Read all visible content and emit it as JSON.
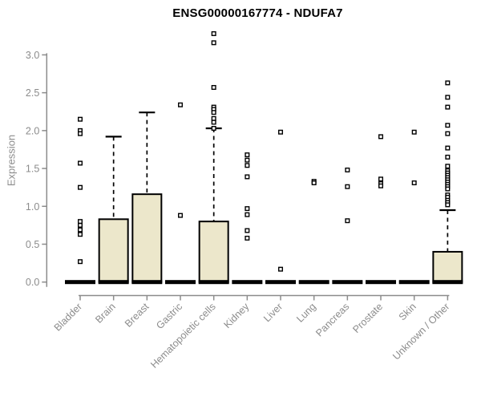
{
  "chart_data": {
    "type": "boxplot",
    "title": "ENSG00000167774 - NDUFA7",
    "ylabel": "Expression",
    "xlabel": "",
    "ylim": [
      0.0,
      3.3
    ],
    "yticks": [
      0.0,
      0.5,
      1.0,
      1.5,
      2.0,
      2.5,
      3.0
    ],
    "grid": false,
    "legend": "none",
    "colors": {
      "box_fill": "#ECE7CB",
      "box_border": "#000000",
      "median": "#000000",
      "whisker": "#000000",
      "outlier_stroke": "#000000",
      "outlier_fill": "#ffffff",
      "axis": "#8C8C8C",
      "tick_text": "#8C8C8C",
      "title_text": "#000000",
      "background": "#ffffff"
    },
    "categories": [
      "Bladder",
      "Brain",
      "Breast",
      "Gastric",
      "Hematopoietic cells",
      "Kidney",
      "Liver",
      "Lung",
      "Pancreas",
      "Prostate",
      "Skin",
      "Unknown / Other"
    ],
    "series": [
      {
        "category": "Bladder",
        "q1": 0,
        "median": 0,
        "q3": 0,
        "whisker_low": 0,
        "whisker_high": 0,
        "outliers": [
          2.15,
          2.0,
          1.96,
          1.57,
          1.25,
          0.8,
          0.75,
          0.69,
          0.63,
          0.27
        ]
      },
      {
        "category": "Brain",
        "q1": 0,
        "median": 0,
        "q3": 0.83,
        "whisker_low": 0,
        "whisker_high": 1.92,
        "outliers": []
      },
      {
        "category": "Breast",
        "q1": 0,
        "median": 0,
        "q3": 1.16,
        "whisker_low": 0,
        "whisker_high": 2.24,
        "outliers": []
      },
      {
        "category": "Gastric",
        "q1": 0,
        "median": 0,
        "q3": 0,
        "whisker_low": 0,
        "whisker_high": 0,
        "outliers": [
          2.34,
          0.88
        ]
      },
      {
        "category": "Hematopoietic cells",
        "q1": 0,
        "median": 0,
        "q3": 0.8,
        "whisker_low": 0,
        "whisker_high": 2.03,
        "outliers": [
          3.28,
          3.16,
          2.57,
          2.31,
          2.28,
          2.24,
          2.16,
          2.11,
          2.03
        ]
      },
      {
        "category": "Kidney",
        "q1": 0,
        "median": 0,
        "q3": 0,
        "whisker_low": 0,
        "whisker_high": 0,
        "outliers": [
          1.68,
          1.61,
          1.54,
          1.39,
          0.97,
          0.89,
          0.68,
          0.58
        ]
      },
      {
        "category": "Liver",
        "q1": 0,
        "median": 0,
        "q3": 0,
        "whisker_low": 0,
        "whisker_high": 0,
        "outliers": [
          1.98,
          0.17
        ]
      },
      {
        "category": "Lung",
        "q1": 0,
        "median": 0,
        "q3": 0,
        "whisker_low": 0,
        "whisker_high": 0,
        "outliers": [
          1.33,
          1.31
        ]
      },
      {
        "category": "Pancreas",
        "q1": 0,
        "median": 0,
        "q3": 0,
        "whisker_low": 0,
        "whisker_high": 0,
        "outliers": [
          1.48,
          1.26,
          0.81
        ]
      },
      {
        "category": "Prostate",
        "q1": 0,
        "median": 0,
        "q3": 0,
        "whisker_low": 0,
        "whisker_high": 0,
        "outliers": [
          1.92,
          1.36,
          1.3,
          1.27
        ]
      },
      {
        "category": "Skin",
        "q1": 0,
        "median": 0,
        "q3": 0,
        "whisker_low": 0,
        "whisker_high": 0,
        "outliers": [
          1.98,
          1.31
        ]
      },
      {
        "category": "Unknown / Other",
        "q1": 0,
        "median": 0,
        "q3": 0.4,
        "whisker_low": 0,
        "whisker_high": 0.95,
        "outliers": [
          2.63,
          2.44,
          2.31,
          2.07,
          1.96,
          1.77,
          1.65,
          1.53,
          1.47,
          1.44,
          1.41,
          1.38,
          1.35,
          1.32,
          1.29,
          1.26,
          1.23,
          1.15,
          1.12,
          1.08,
          1.05,
          1.02
        ]
      }
    ]
  }
}
